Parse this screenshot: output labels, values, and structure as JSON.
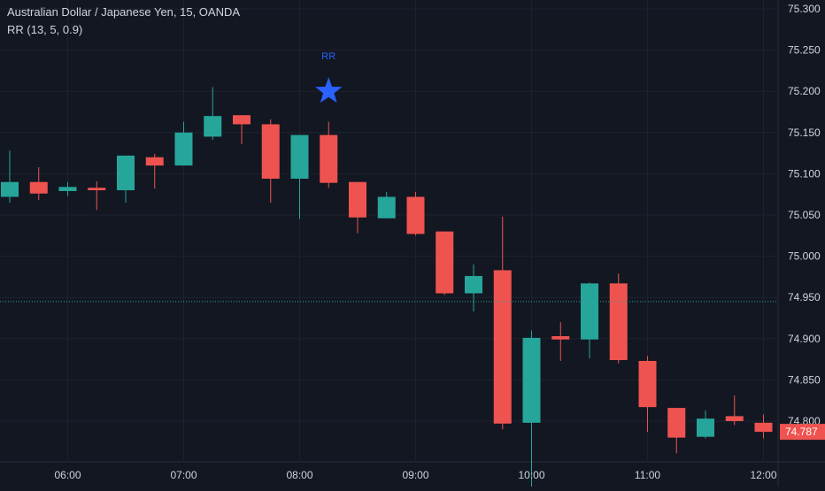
{
  "header": {
    "title": "Australian Dollar / Japanese Yen, 15, OANDA",
    "indicator": "RR (13, 5, 0.9)"
  },
  "colors": {
    "background": "#131722",
    "up": "#26a69a",
    "down": "#ef5350",
    "grid": "#1e222d",
    "axis_text": "#d1d4dc",
    "marker": "#2962ff",
    "price_line": "#26a69a"
  },
  "chart_data": {
    "type": "candlestick",
    "title": "Australian Dollar / Japanese Yen, 15, OANDA",
    "indicator": "RR (13, 5, 0.9)",
    "y_axis": {
      "ylim": [
        74.7,
        75.31
      ],
      "ticks": [
        "75.300",
        "75.250",
        "75.200",
        "75.150",
        "75.100",
        "75.050",
        "75.000",
        "74.950",
        "74.900",
        "74.850",
        "74.800"
      ]
    },
    "x_axis": {
      "ticks": [
        {
          "label": "06:00",
          "time": "06:00"
        },
        {
          "label": "07:00",
          "time": "07:00"
        },
        {
          "label": "08:00",
          "time": "08:00"
        },
        {
          "label": "09:00",
          "time": "09:00"
        },
        {
          "label": "10:00",
          "time": "10:00"
        },
        {
          "label": "11:00",
          "time": "11:00"
        },
        {
          "label": "12:00",
          "time": "12:00"
        }
      ]
    },
    "candles": [
      {
        "time": "05:30",
        "open": 75.072,
        "high": 75.128,
        "low": 75.065,
        "close": 75.09
      },
      {
        "time": "05:45",
        "open": 75.09,
        "high": 75.108,
        "low": 75.068,
        "close": 75.076
      },
      {
        "time": "06:00",
        "open": 75.079,
        "high": 75.09,
        "low": 75.073,
        "close": 75.084
      },
      {
        "time": "06:15",
        "open": 75.083,
        "high": 75.091,
        "low": 75.056,
        "close": 75.08
      },
      {
        "time": "06:30",
        "open": 75.08,
        "high": 75.122,
        "low": 75.065,
        "close": 75.122
      },
      {
        "time": "06:45",
        "open": 75.12,
        "high": 75.124,
        "low": 75.082,
        "close": 75.11
      },
      {
        "time": "07:00",
        "open": 75.11,
        "high": 75.163,
        "low": 75.11,
        "close": 75.15
      },
      {
        "time": "07:15",
        "open": 75.145,
        "high": 75.205,
        "low": 75.141,
        "close": 75.17
      },
      {
        "time": "07:30",
        "open": 75.171,
        "high": 75.171,
        "low": 75.136,
        "close": 75.16
      },
      {
        "time": "07:45",
        "open": 75.16,
        "high": 75.166,
        "low": 75.065,
        "close": 75.094
      },
      {
        "time": "08:00",
        "open": 75.094,
        "high": 75.147,
        "low": 75.045,
        "close": 75.147
      },
      {
        "time": "08:15",
        "open": 75.147,
        "high": 75.163,
        "low": 75.083,
        "close": 75.089
      },
      {
        "time": "08:30",
        "open": 75.09,
        "high": 75.09,
        "low": 75.028,
        "close": 75.047
      },
      {
        "time": "08:45",
        "open": 75.046,
        "high": 75.078,
        "low": 75.046,
        "close": 75.072
      },
      {
        "time": "09:00",
        "open": 75.072,
        "high": 75.078,
        "low": 75.025,
        "close": 75.027
      },
      {
        "time": "09:15",
        "open": 75.03,
        "high": 75.03,
        "low": 74.953,
        "close": 74.955
      },
      {
        "time": "09:30",
        "open": 74.955,
        "high": 74.99,
        "low": 74.933,
        "close": 74.976
      },
      {
        "time": "09:45",
        "open": 74.983,
        "high": 75.048,
        "low": 74.79,
        "close": 74.797
      },
      {
        "time": "10:00",
        "open": 74.798,
        "high": 74.91,
        "low": 74.705,
        "close": 74.901
      },
      {
        "time": "10:15",
        "open": 74.903,
        "high": 74.92,
        "low": 74.873,
        "close": 74.899
      },
      {
        "time": "10:30",
        "open": 74.899,
        "high": 74.968,
        "low": 74.876,
        "close": 74.967
      },
      {
        "time": "10:45",
        "open": 74.967,
        "high": 74.979,
        "low": 74.87,
        "close": 74.874
      },
      {
        "time": "11:00",
        "open": 74.873,
        "high": 74.879,
        "low": 74.787,
        "close": 74.817
      },
      {
        "time": "11:15",
        "open": 74.816,
        "high": 74.816,
        "low": 74.761,
        "close": 74.78
      },
      {
        "time": "11:30",
        "open": 74.781,
        "high": 74.813,
        "low": 74.779,
        "close": 74.803
      },
      {
        "time": "11:45",
        "open": 74.806,
        "high": 74.831,
        "low": 74.795,
        "close": 74.8
      },
      {
        "time": "12:00",
        "open": 74.798,
        "high": 74.808,
        "low": 74.779,
        "close": 74.787
      }
    ],
    "price_line": 74.945,
    "current_price_label": "74.787",
    "current_price": 74.787,
    "signal": {
      "label": "RR",
      "time": "08:15",
      "price": 75.2
    }
  }
}
